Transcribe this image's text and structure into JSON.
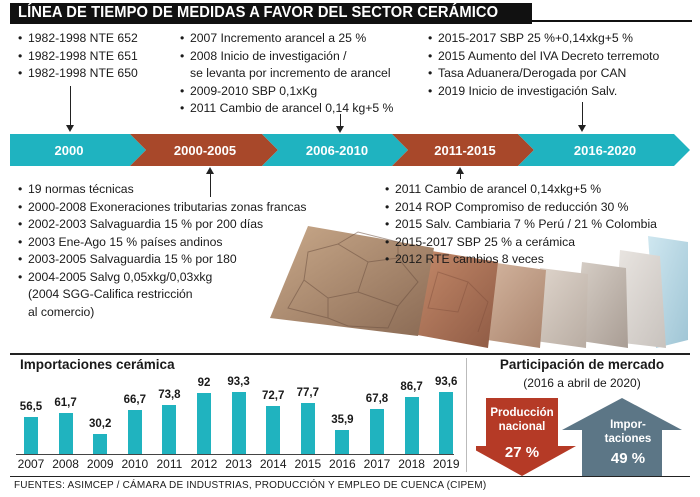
{
  "title": "LÍNEA DE TIEMPO DE MEDIDAS A FAVOR DEL SECTOR CERÁMICO",
  "colors": {
    "teal": "#1fb3c0",
    "rust": "#a8482a",
    "title_bg": "#111111",
    "bar": "#20b3bf",
    "arrow_down": "#b53a26",
    "arrow_up": "#5c7686"
  },
  "top_groups": [
    {
      "items": [
        "1982-1998 NTE 652",
        "1982-1998 NTE 651",
        "1982-1998 NTE 650"
      ]
    },
    {
      "items": [
        "2007 Incremento arancel a 25 %",
        "2008 Inicio de investigación /",
        "se levanta por incremento de arancel",
        "2009-2010 SBP 0,1xKg",
        "2011 Cambio de arancel 0,14 kg+5 %"
      ]
    },
    {
      "items": [
        "2015-2017 SBP 25 %+0,14xkg+5 %",
        "2015 Aumento del IVA Decreto terremoto",
        "Tasa Aduanera/Derogada por CAN",
        "2019 Inicio de investigación Salv."
      ]
    }
  ],
  "timeline": [
    "2000",
    "2000-2005",
    "2006-2010",
    "2011-2015",
    "2016-2020"
  ],
  "bottom_groups": [
    {
      "items": [
        "19 normas técnicas",
        "2000-2008 Exoneraciones tributarias zonas francas",
        "2002-2003 Salvaguardia 15 % por 200 días",
        "2003 Ene-Ago 15 % países andinos",
        "2003-2005 Salvaguardia 15 % por 180",
        "2004-2005 Salvg 0,05xkg/0,03xkg",
        "(2004 SGG-Califica restricción",
        "al comercio)"
      ]
    },
    {
      "items": [
        "2011 Cambio de arancel 0,14xkg+5 %",
        "2014 ROP Compromiso de reducción 30 %",
        "2015 Salv. Cambiaria 7 % Perú / 21 % Colombia",
        "2015-2017 SBP 25 % a cerámica",
        "2012 RTE cambios 8 veces"
      ]
    }
  ],
  "imports": {
    "title": "Importaciones cerámica",
    "chart_data": {
      "type": "bar",
      "categories": [
        "2007",
        "2008",
        "2009",
        "2010",
        "2011",
        "2012",
        "2013",
        "2014",
        "2015",
        "2016",
        "2017",
        "2018",
        "2019"
      ],
      "values": [
        56.5,
        61.7,
        30.2,
        66.7,
        73.8,
        92,
        93.3,
        72.7,
        77.7,
        35.9,
        67.8,
        86.7,
        93.6
      ],
      "labels": [
        "56,5",
        "61,7",
        "30,2",
        "66,7",
        "73,8",
        "92",
        "93,3",
        "72,7",
        "77,7",
        "35,9",
        "67,8",
        "86,7",
        "93,6"
      ]
    }
  },
  "market": {
    "title": "Participación de mercado",
    "subtitle": "(2016 a abril de 2020)",
    "national_label_1": "Producción",
    "national_label_2": "nacional",
    "national_value": "27 %",
    "imports_label_1": "Impor-",
    "imports_label_2": "taciones",
    "imports_value": "49 %"
  },
  "source": "FUENTES: ASIMCEP / CÁMARA DE INDUSTRIAS, PRODUCCIÓN Y EMPLEO DE CUENCA (CIPEM)"
}
